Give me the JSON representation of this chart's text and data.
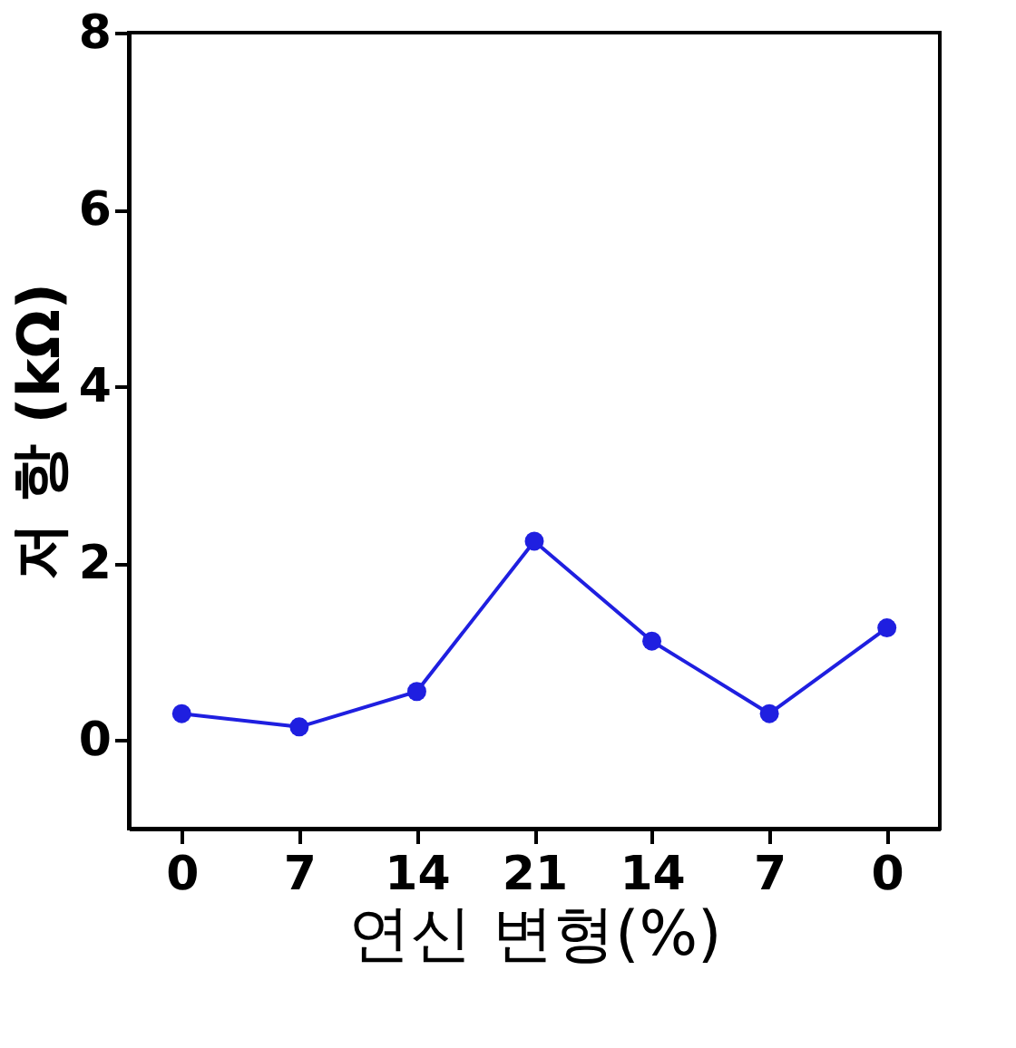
{
  "chart_data": {
    "type": "line",
    "xlabel": "연신  변형(%)",
    "ylabel": "저 항 (kΩ)",
    "categories": [
      "0",
      "7",
      "14",
      "21",
      "14",
      "7",
      "0"
    ],
    "series": [
      {
        "color": "#1f1fe0",
        "values": [
          0.3,
          0.15,
          0.55,
          2.25,
          1.12,
          0.3,
          1.27
        ]
      }
    ],
    "ylim": [
      -1,
      8
    ],
    "yticks": [
      0,
      2,
      4,
      6,
      8
    ],
    "marker": "circle",
    "line_style": "solid",
    "grid": false
  }
}
